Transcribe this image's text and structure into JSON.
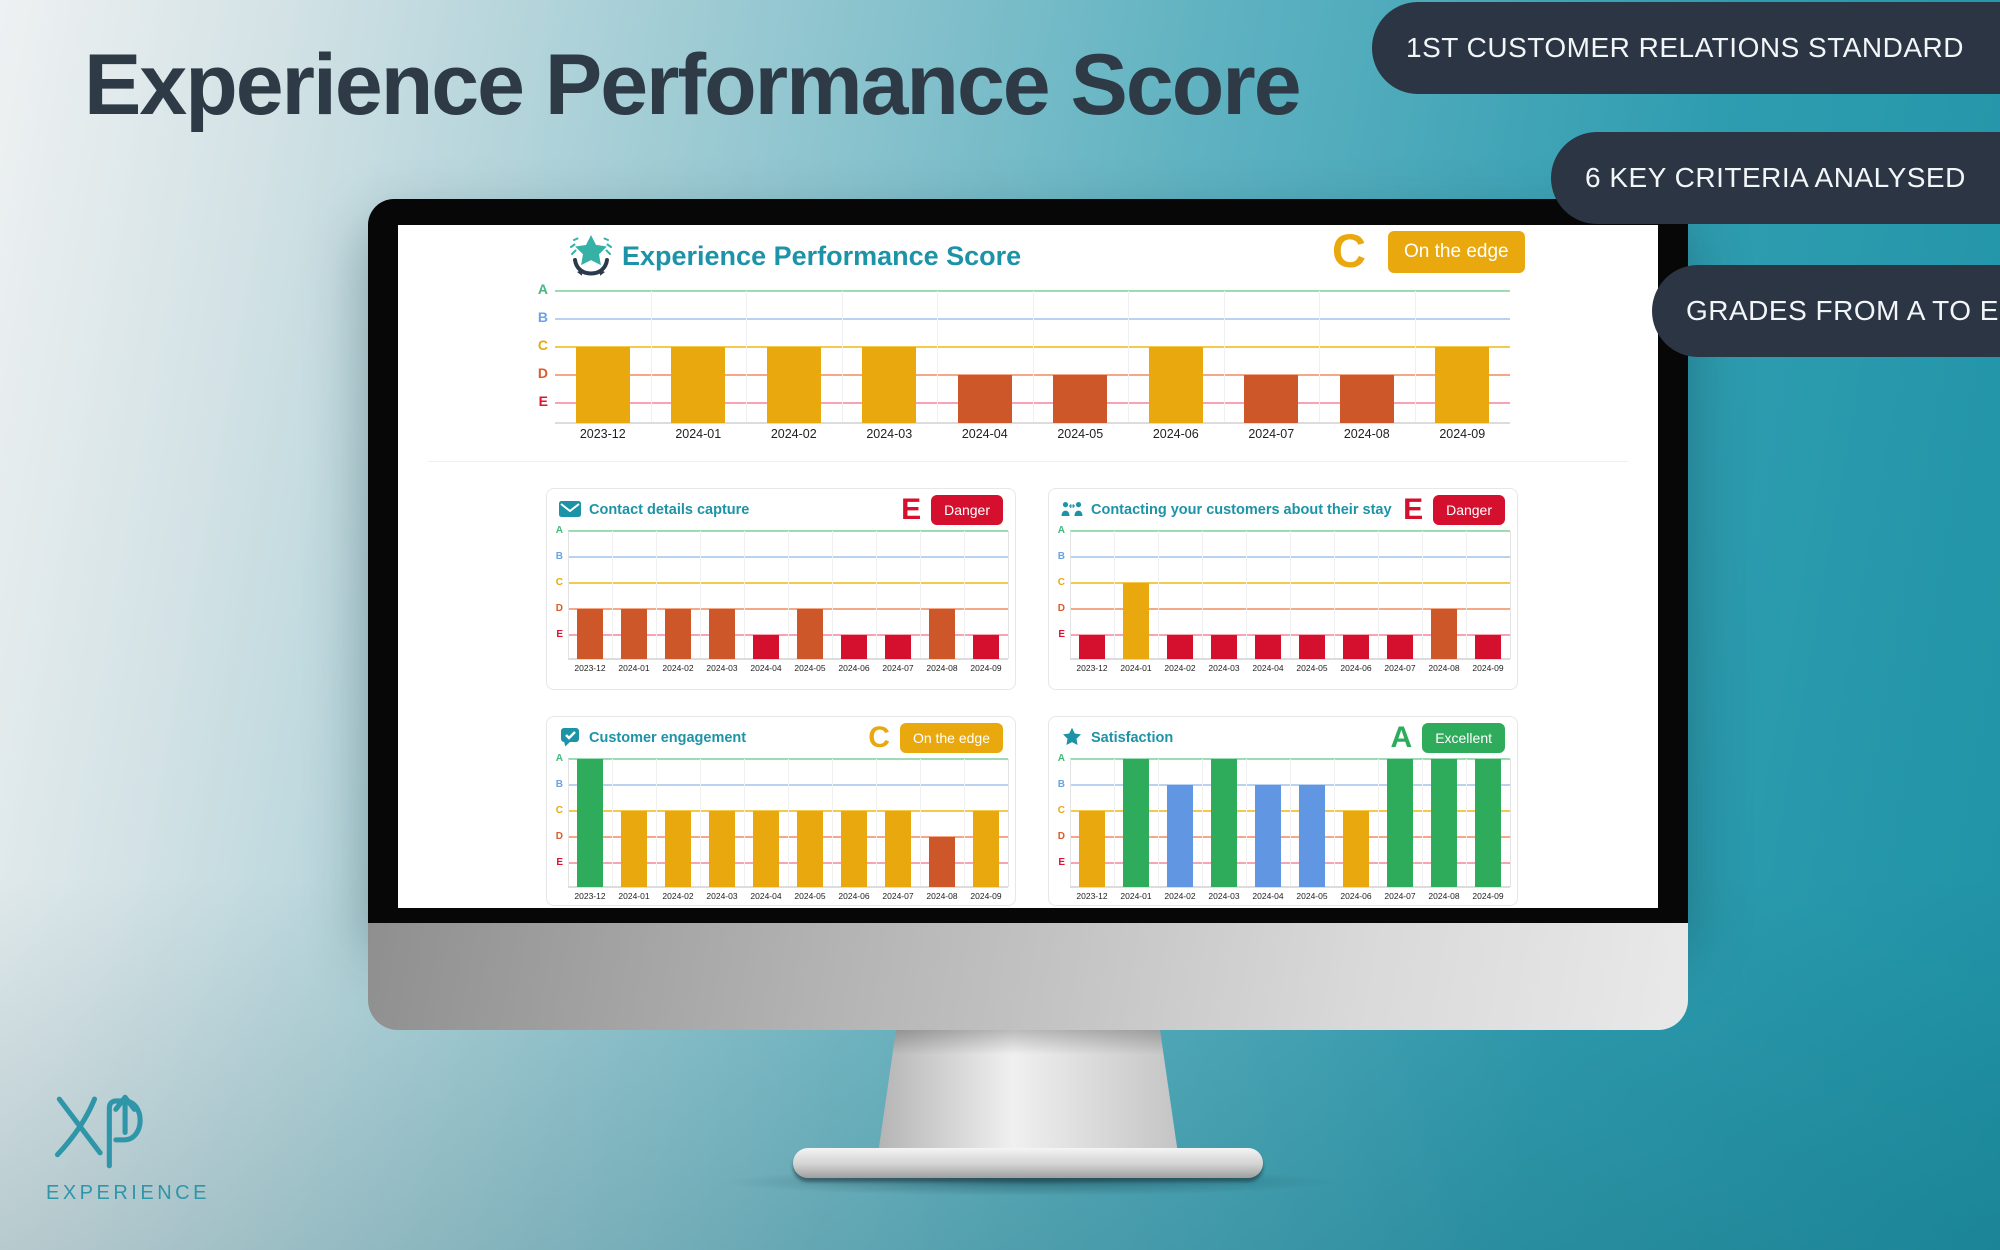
{
  "hero": {
    "title": "Experience Performance Score"
  },
  "pills": [
    {
      "label": "1ST CUSTOMER RELATIONS STANDARD"
    },
    {
      "label": "6 KEY CRITERIA ANALYSED"
    },
    {
      "label": "GRADES FROM A TO E"
    }
  ],
  "logo": {
    "brand": "EXPERIENCE"
  },
  "colors": {
    "teal": "#1d93a8",
    "pill_bg": "#2b3544",
    "hero_text": "#2e3b47",
    "grade": {
      "A": "#2eac5c",
      "B": "#6096e2",
      "C": "#e9a90e",
      "D": "#cd5728",
      "E": "#d50f2e"
    },
    "grade_line": {
      "A": "#9bdcb5",
      "B": "#b9d2f2",
      "C": "#f4ca4d",
      "D": "#f4a886",
      "E": "#f7a3b2"
    },
    "grade_tick": {
      "A": "#45b97c",
      "B": "#6ba3e8",
      "C": "#e9a90e",
      "D": "#dd5b28",
      "E": "#e01232"
    }
  },
  "months": [
    "2023-12",
    "2024-01",
    "2024-02",
    "2024-03",
    "2024-04",
    "2024-05",
    "2024-06",
    "2024-07",
    "2024-08",
    "2024-09"
  ],
  "chart_data": [
    {
      "type": "bar",
      "id": "overall",
      "title": "Experience Performance Score",
      "icon": "laurel-star",
      "grade": "C",
      "status": "On the edge",
      "y_ticks": [
        "A",
        "B",
        "C",
        "D",
        "E"
      ],
      "categories": [
        "2023-12",
        "2024-01",
        "2024-02",
        "2024-03",
        "2024-04",
        "2024-05",
        "2024-06",
        "2024-07",
        "2024-08",
        "2024-09"
      ],
      "values": [
        "C",
        "C",
        "C",
        "C",
        "D",
        "D",
        "C",
        "D",
        "D",
        "C"
      ]
    },
    {
      "type": "bar",
      "id": "contact-details-capture",
      "title": "Contact details capture",
      "icon": "envelope",
      "grade": "E",
      "status": "Danger",
      "y_ticks": [
        "A",
        "B",
        "C",
        "D",
        "E"
      ],
      "categories": [
        "2023-12",
        "2024-01",
        "2024-02",
        "2024-03",
        "2024-04",
        "2024-05",
        "2024-06",
        "2024-07",
        "2024-08",
        "2024-09"
      ],
      "values": [
        "D",
        "D",
        "D",
        "D",
        "E",
        "D",
        "E",
        "E",
        "D",
        "E"
      ]
    },
    {
      "type": "bar",
      "id": "contacting-customers",
      "title": "Contacting your customers about their stay",
      "icon": "people",
      "grade": "E",
      "status": "Danger",
      "y_ticks": [
        "A",
        "B",
        "C",
        "D",
        "E"
      ],
      "categories": [
        "2023-12",
        "2024-01",
        "2024-02",
        "2024-03",
        "2024-04",
        "2024-05",
        "2024-06",
        "2024-07",
        "2024-08",
        "2024-09"
      ],
      "values": [
        "E",
        "C",
        "E",
        "E",
        "E",
        "E",
        "E",
        "E",
        "D",
        "E"
      ]
    },
    {
      "type": "bar",
      "id": "customer-engagement",
      "title": "Customer engagement",
      "icon": "chat-check",
      "grade": "C",
      "status": "On the edge",
      "y_ticks": [
        "A",
        "B",
        "C",
        "D",
        "E"
      ],
      "categories": [
        "2023-12",
        "2024-01",
        "2024-02",
        "2024-03",
        "2024-04",
        "2024-05",
        "2024-06",
        "2024-07",
        "2024-08",
        "2024-09"
      ],
      "values": [
        "A",
        "C",
        "C",
        "C",
        "C",
        "C",
        "C",
        "C",
        "D",
        "C"
      ]
    },
    {
      "type": "bar",
      "id": "satisfaction",
      "title": "Satisfaction",
      "icon": "star",
      "grade": "A",
      "status": "Excellent",
      "y_ticks": [
        "A",
        "B",
        "C",
        "D",
        "E"
      ],
      "categories": [
        "2023-12",
        "2024-01",
        "2024-02",
        "2024-03",
        "2024-04",
        "2024-05",
        "2024-06",
        "2024-07",
        "2024-08",
        "2024-09"
      ],
      "values": [
        "C",
        "A",
        "B",
        "A",
        "B",
        "B",
        "C",
        "A",
        "A",
        "A"
      ]
    }
  ]
}
